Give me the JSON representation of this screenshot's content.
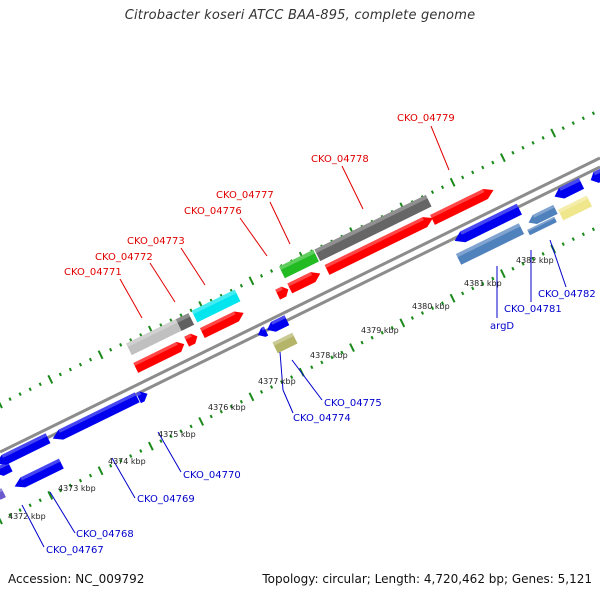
{
  "title": "Citrobacter koseri ATCC BAA-895, complete genome",
  "footer": {
    "accession": "Accession: NC_009792",
    "topology": "Topology: circular; Length: 4,720,462 bp; Genes: 5,121"
  },
  "colors": {
    "forward_label": "#e00000",
    "reverse_label": "#0000cc",
    "backbone": "#808080",
    "tick": "#1a8a1a"
  },
  "forward_genes": [
    {
      "label": "CKO_04771",
      "color": "#c0c0c0"
    },
    {
      "label": "CKO_04772",
      "color": "#606060"
    },
    {
      "label": "CKO_04773",
      "color": "#00e5ee"
    },
    {
      "label": "CKO_04776",
      "color": "#ff0000"
    },
    {
      "label": "CKO_04777",
      "color": "#22bb22"
    },
    {
      "label": "CKO_04778",
      "color": "#666666"
    },
    {
      "label": "CKO_04779",
      "color": "#ff0000"
    }
  ],
  "reverse_genes": [
    {
      "label": "CKO_04767",
      "color": "#0000ee"
    },
    {
      "label": "CKO_04768",
      "color": "#0000ee"
    },
    {
      "label": "CKO_04769",
      "color": "#0000ee"
    },
    {
      "label": "CKO_04770",
      "color": "#0000ee"
    },
    {
      "label": "CKO_04774",
      "color": "#b5b56a"
    },
    {
      "label": "CKO_04775",
      "color": "#0000ee"
    },
    {
      "label": "argD",
      "color": "#4f81bd"
    },
    {
      "label": "CKO_04781",
      "color": "#4f81bd"
    },
    {
      "label": "CKO_04782",
      "color": "#f0e68c"
    }
  ],
  "scale_ticks": [
    "4372 kbp",
    "4373 kbp",
    "4374 kbp",
    "4375 kbp",
    "4376 kbp",
    "4377 kbp",
    "4378 kbp",
    "4379 kbp",
    "4380 kbp",
    "4381 kbp",
    "4382 kbp"
  ]
}
